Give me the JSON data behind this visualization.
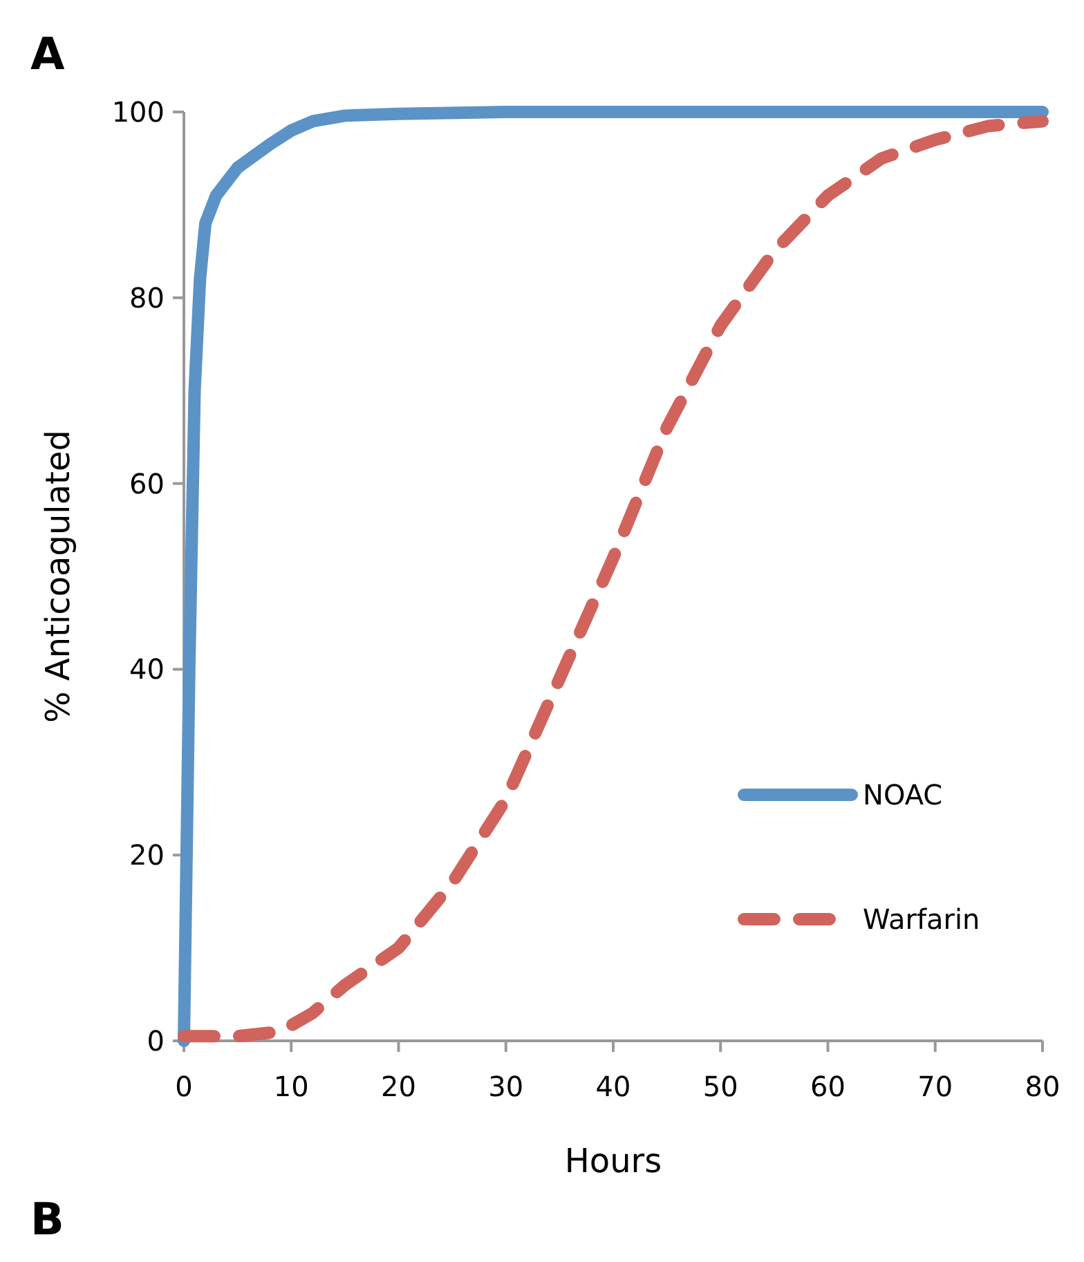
{
  "chart_data": {
    "type": "line",
    "xlabel": "Hours",
    "ylabel": "% Anticoagulated",
    "annotations": [
      "A",
      "B"
    ],
    "xlim": [
      0,
      80
    ],
    "xticks": [
      0,
      10,
      20,
      30,
      40,
      50,
      60,
      70,
      80
    ],
    "ylim": [
      0,
      100
    ],
    "yticks": [
      0,
      20,
      40,
      60,
      80,
      100
    ],
    "grid": false,
    "legend": "right",
    "series": [
      {
        "name": "NOAC",
        "color": "#5b93c7",
        "line_style": "solid",
        "x": [
          0,
          0.5,
          1,
          1.5,
          2,
          3,
          5,
          8,
          10,
          12,
          15,
          20,
          30,
          80
        ],
        "values": [
          0,
          40,
          70,
          82,
          88,
          91,
          94,
          96.5,
          98,
          99,
          99.6,
          99.8,
          100,
          100
        ]
      },
      {
        "name": "Warfarin",
        "color": "#d0635c",
        "line_style": "dashed",
        "x": [
          0,
          5,
          9,
          12,
          15,
          20,
          25,
          30,
          35,
          40,
          45,
          50,
          55,
          60,
          65,
          70,
          75,
          80
        ],
        "values": [
          0.5,
          0.5,
          1,
          3,
          6,
          10,
          17,
          26,
          39,
          52,
          66,
          77,
          85,
          91,
          95,
          97,
          98.5,
          99
        ]
      }
    ]
  }
}
